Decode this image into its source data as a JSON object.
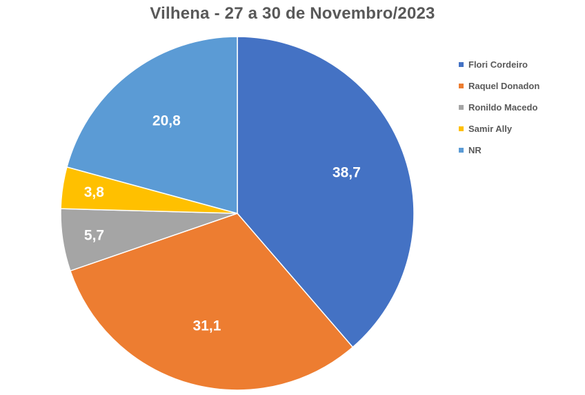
{
  "chart_data": {
    "type": "pie",
    "title": "Vilhena - 27 a 30 de Novembro/2023",
    "categories": [
      "Flori Cordeiro",
      "Raquel Donadon",
      "Ronildo Macedo",
      "Samir Ally",
      "NR"
    ],
    "values": [
      38.7,
      31.1,
      5.7,
      3.8,
      20.8
    ],
    "data_labels": [
      "38,7",
      "31,1",
      "5,7",
      "3,8",
      "20,8"
    ],
    "colors": [
      "#4472C4",
      "#ED7D31",
      "#A5A5A5",
      "#FFC000",
      "#5B9BD5"
    ],
    "start_angle": "12 o'clock",
    "direction": "clockwise",
    "legend_position": "right"
  }
}
